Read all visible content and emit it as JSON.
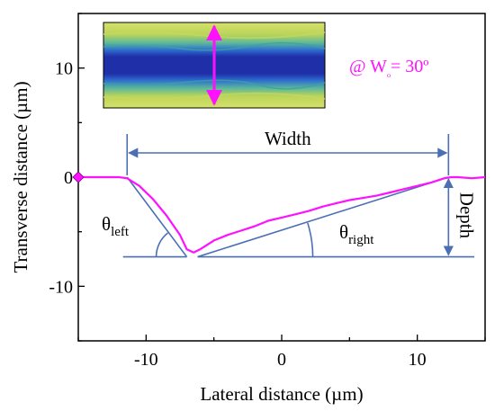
{
  "chart_data": {
    "type": "line",
    "title": "",
    "xlabel": "Lateral distance (µm)",
    "ylabel": "Transverse distance (µm)",
    "xlim": [
      -15,
      15
    ],
    "ylim": [
      -15,
      15
    ],
    "x_ticks": [
      -10,
      0,
      10
    ],
    "y_ticks": [
      10,
      0,
      -10
    ],
    "x_tick_labels": [
      "-10",
      "0",
      "10"
    ],
    "y_tick_labels": [
      "10",
      "0",
      "-10"
    ],
    "grid": false,
    "legend": "none",
    "series_color": "#ff10ff",
    "annotation_color": "#4a6fb5",
    "annotation_text": "@ Wₒ= 30º",
    "width_label": "Width",
    "depth_label": "Depth",
    "theta_left_label": "θ",
    "theta_left_sub": "left",
    "theta_right_label": "θ",
    "theta_right_sub": "right",
    "series": [
      {
        "x": [
          -15,
          -14,
          -13,
          -12,
          -11.4,
          -10.5,
          -9.5,
          -8.5,
          -7.5,
          -7.0,
          -6.5,
          -6.0,
          -5.0,
          -4.0,
          -3.0,
          -2.0,
          -1.0,
          0.0,
          1.0,
          2.0,
          3.0,
          4.0,
          5.0,
          6.0,
          7.0,
          8.0,
          9.0,
          10.0,
          11.0,
          12.0,
          12.5,
          13.0,
          14.0,
          15.0
        ],
        "y": [
          0,
          0,
          0,
          0,
          -0.1,
          -0.8,
          -2.0,
          -3.5,
          -5.3,
          -6.6,
          -6.9,
          -6.6,
          -5.8,
          -5.3,
          -4.9,
          -4.5,
          -4.0,
          -3.7,
          -3.4,
          -3.1,
          -2.7,
          -2.4,
          -2.1,
          -1.9,
          -1.7,
          -1.4,
          -1.1,
          -0.8,
          -0.5,
          -0.1,
          0.0,
          0.0,
          -0.1,
          0.0
        ]
      }
    ],
    "width_range": [
      -11.4,
      12.3
    ],
    "depth_range": [
      0,
      -7.3
    ],
    "baseline_y": -7.3,
    "inset_image": "micrograph of groove with vertical magenta double arrow"
  }
}
